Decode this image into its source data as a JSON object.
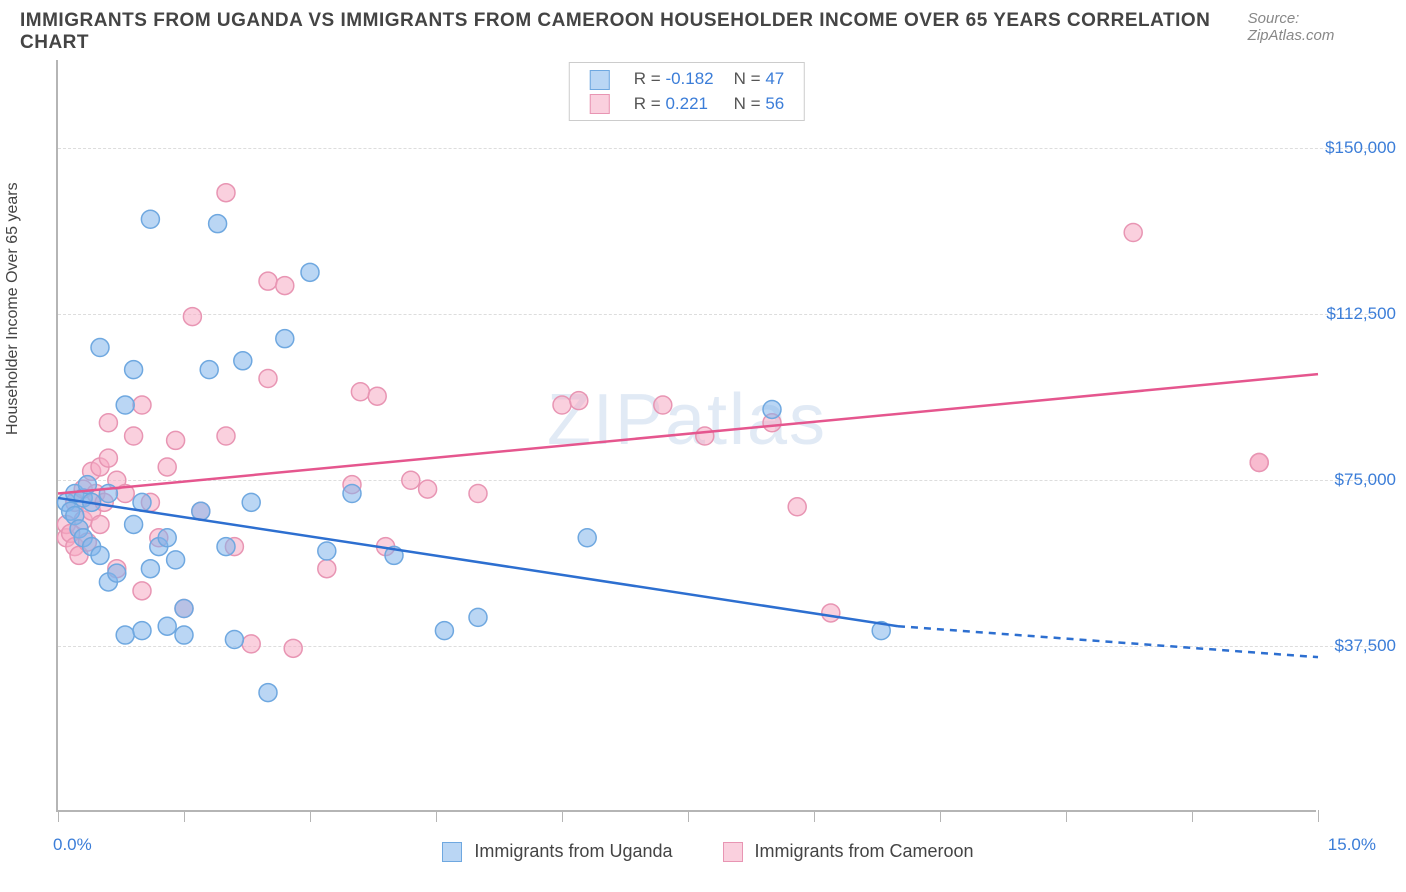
{
  "header": {
    "title": "IMMIGRANTS FROM UGANDA VS IMMIGRANTS FROM CAMEROON HOUSEHOLDER INCOME OVER 65 YEARS CORRELATION CHART",
    "source": "Source: ZipAtlas.com"
  },
  "watermark": "ZIPatlas",
  "axes": {
    "ylabel": "Householder Income Over 65 years",
    "xmin_label": "0.0%",
    "xmax_label": "15.0%",
    "xlim": [
      0,
      15
    ],
    "ylim": [
      0,
      170000
    ],
    "ytick_labels": [
      "$37,500",
      "$75,000",
      "$112,500",
      "$150,000"
    ],
    "ytick_values": [
      37500,
      75000,
      112500,
      150000
    ],
    "xtick_positions": [
      0,
      1.5,
      3,
      4.5,
      6,
      7.5,
      9,
      10.5,
      12,
      13.5,
      15
    ]
  },
  "series": {
    "uganda": {
      "label": "Immigrants from Uganda",
      "r": "-0.182",
      "n": "47",
      "fill": "rgba(130,180,235,0.55)",
      "stroke": "#6fa8e0",
      "line_color": "#2d6fd0",
      "trend": {
        "x1": 0,
        "y1": 71000,
        "x2": 10,
        "y2": 42000,
        "extrap_x2": 15,
        "extrap_y2": 35000
      },
      "points": [
        [
          0.1,
          70000
        ],
        [
          0.15,
          68000
        ],
        [
          0.2,
          72000
        ],
        [
          0.2,
          67000
        ],
        [
          0.25,
          64000
        ],
        [
          0.3,
          71000
        ],
        [
          0.3,
          62000
        ],
        [
          0.35,
          74000
        ],
        [
          0.4,
          60000
        ],
        [
          0.4,
          70000
        ],
        [
          0.5,
          58000
        ],
        [
          0.5,
          105000
        ],
        [
          0.6,
          52000
        ],
        [
          0.6,
          72000
        ],
        [
          0.7,
          54000
        ],
        [
          0.8,
          92000
        ],
        [
          0.8,
          40000
        ],
        [
          0.9,
          100000
        ],
        [
          0.9,
          65000
        ],
        [
          1.0,
          41000
        ],
        [
          1.0,
          70000
        ],
        [
          1.1,
          55000
        ],
        [
          1.1,
          134000
        ],
        [
          1.2,
          60000
        ],
        [
          1.3,
          42000
        ],
        [
          1.3,
          62000
        ],
        [
          1.4,
          57000
        ],
        [
          1.5,
          46000
        ],
        [
          1.5,
          40000
        ],
        [
          1.7,
          68000
        ],
        [
          1.8,
          100000
        ],
        [
          1.9,
          133000
        ],
        [
          2.0,
          60000
        ],
        [
          2.1,
          39000
        ],
        [
          2.2,
          102000
        ],
        [
          2.3,
          70000
        ],
        [
          2.5,
          27000
        ],
        [
          2.7,
          107000
        ],
        [
          3.0,
          122000
        ],
        [
          3.2,
          59000
        ],
        [
          3.5,
          72000
        ],
        [
          4.0,
          58000
        ],
        [
          4.6,
          41000
        ],
        [
          5.0,
          44000
        ],
        [
          6.3,
          62000
        ],
        [
          8.5,
          91000
        ],
        [
          9.8,
          41000
        ]
      ]
    },
    "cameroon": {
      "label": "Immigrants from Cameroon",
      "r": "0.221",
      "n": "56",
      "fill": "rgba(245,170,195,0.55)",
      "stroke": "#e895b3",
      "line_color": "#e5568e",
      "trend": {
        "x1": 0,
        "y1": 72000,
        "x2": 15,
        "y2": 99000
      },
      "points": [
        [
          0.1,
          62000
        ],
        [
          0.1,
          65000
        ],
        [
          0.15,
          63000
        ],
        [
          0.2,
          60000
        ],
        [
          0.2,
          70000
        ],
        [
          0.25,
          58000
        ],
        [
          0.3,
          73000
        ],
        [
          0.3,
          66000
        ],
        [
          0.35,
          61000
        ],
        [
          0.4,
          77000
        ],
        [
          0.4,
          68000
        ],
        [
          0.45,
          72000
        ],
        [
          0.5,
          78000
        ],
        [
          0.5,
          65000
        ],
        [
          0.55,
          70000
        ],
        [
          0.6,
          80000
        ],
        [
          0.6,
          88000
        ],
        [
          0.7,
          75000
        ],
        [
          0.7,
          55000
        ],
        [
          0.8,
          72000
        ],
        [
          0.9,
          85000
        ],
        [
          1.0,
          92000
        ],
        [
          1.0,
          50000
        ],
        [
          1.1,
          70000
        ],
        [
          1.2,
          62000
        ],
        [
          1.3,
          78000
        ],
        [
          1.4,
          84000
        ],
        [
          1.5,
          46000
        ],
        [
          1.6,
          112000
        ],
        [
          1.7,
          68000
        ],
        [
          2.0,
          140000
        ],
        [
          2.0,
          85000
        ],
        [
          2.1,
          60000
        ],
        [
          2.3,
          38000
        ],
        [
          2.5,
          120000
        ],
        [
          2.5,
          98000
        ],
        [
          2.7,
          119000
        ],
        [
          2.8,
          37000
        ],
        [
          3.2,
          55000
        ],
        [
          3.5,
          74000
        ],
        [
          3.6,
          95000
        ],
        [
          3.8,
          94000
        ],
        [
          3.9,
          60000
        ],
        [
          4.2,
          75000
        ],
        [
          4.4,
          73000
        ],
        [
          5.0,
          72000
        ],
        [
          6.0,
          92000
        ],
        [
          6.2,
          93000
        ],
        [
          7.2,
          92000
        ],
        [
          7.7,
          85000
        ],
        [
          8.5,
          88000
        ],
        [
          8.8,
          69000
        ],
        [
          9.2,
          45000
        ],
        [
          12.8,
          131000
        ],
        [
          14.3,
          79000
        ],
        [
          14.3,
          79000
        ]
      ]
    }
  },
  "chart_style": {
    "marker_radius": 9,
    "marker_stroke_width": 1.5,
    "trend_line_width": 2.5,
    "grid_color": "#ddd",
    "axis_color": "#b5b5b5",
    "background": "#ffffff"
  }
}
